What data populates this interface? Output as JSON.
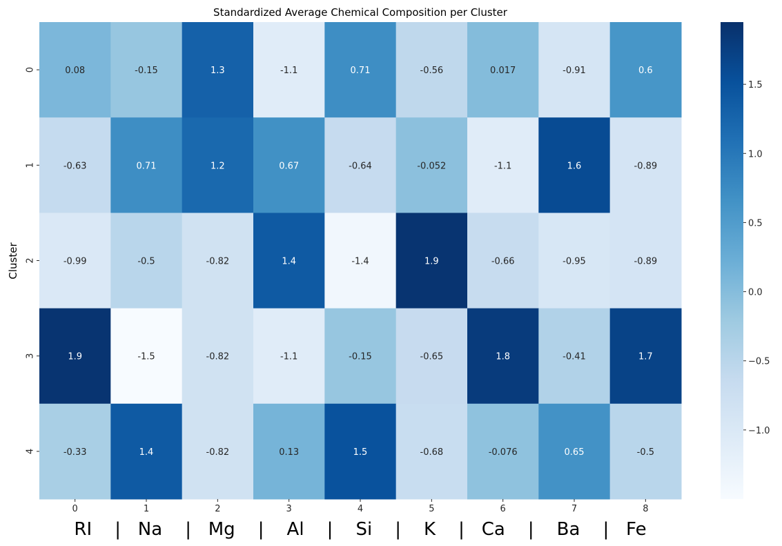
{
  "chart_data": {
    "type": "heatmap",
    "title": "Standardized Average Chemical Composition per Cluster",
    "ylabel": "Cluster",
    "xlabel": "RI    |   Na    |   Mg    |    Al    |    Si    |    K    |   Ca    |    Ba    |   Fe",
    "x_ticks": [
      "0",
      "1",
      "2",
      "3",
      "4",
      "5",
      "6",
      "7",
      "8"
    ],
    "y_ticks": [
      "0",
      "1",
      "2",
      "3",
      "4"
    ],
    "values": [
      [
        0.08,
        -0.15,
        1.3,
        -1.1,
        0.71,
        -0.56,
        0.017,
        -0.91,
        0.6
      ],
      [
        -0.63,
        0.71,
        1.2,
        0.67,
        -0.64,
        -0.052,
        -1.1,
        1.6,
        -0.89
      ],
      [
        -0.99,
        -0.5,
        -0.82,
        1.4,
        -1.4,
        1.9,
        -0.66,
        -0.95,
        -0.89
      ],
      [
        1.9,
        -1.5,
        -0.82,
        -1.1,
        -0.15,
        -0.65,
        1.8,
        -0.41,
        1.7
      ],
      [
        -0.33,
        1.4,
        -0.82,
        0.13,
        1.5,
        -0.68,
        -0.076,
        0.65,
        -0.5
      ]
    ],
    "annotations": [
      [
        "0.08",
        "-0.15",
        "1.3",
        "-1.1",
        "0.71",
        "-0.56",
        "0.017",
        "-0.91",
        "0.6"
      ],
      [
        "-0.63",
        "0.71",
        "1.2",
        "0.67",
        "-0.64",
        "-0.052",
        "-1.1",
        "1.6",
        "-0.89"
      ],
      [
        "-0.99",
        "-0.5",
        "-0.82",
        "1.4",
        "-1.4",
        "1.9",
        "-0.66",
        "-0.95",
        "-0.89"
      ],
      [
        "1.9",
        "-1.5",
        "-0.82",
        "-1.1",
        "-0.15",
        "-0.65",
        "1.8",
        "-0.41",
        "1.7"
      ],
      [
        "-0.33",
        "1.4",
        "-0.82",
        "0.13",
        "1.5",
        "-0.68",
        "-0.076",
        "0.65",
        "-0.5"
      ]
    ],
    "colormap": "Blues",
    "vmin": -1.5,
    "vmax": 1.95,
    "colorbar_ticks": [
      "1.5",
      "1.0",
      "0.5",
      "0.0",
      "−0.5",
      "−1.0"
    ],
    "colorbar_tick_values": [
      1.5,
      1.0,
      0.5,
      0.0,
      -0.5,
      -1.0
    ],
    "grid": false,
    "legend": "colorbar-right"
  }
}
